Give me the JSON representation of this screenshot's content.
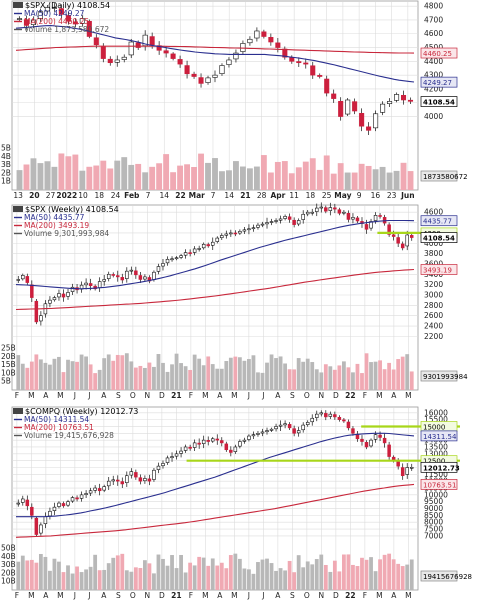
{
  "colors": {
    "up": "#ffffff",
    "down": "#cc1f3d",
    "wick": "#111111",
    "ma50": "#2a2f8f",
    "ma200": "#c8283c",
    "vol_up": "#b8b8b8",
    "vol_down": "#f0a9b3",
    "grid": "#dcdcdc",
    "trendline": "#a8d61a"
  },
  "chart_data": [
    {
      "type": "candlestick",
      "title": "$SPX (Daily) 4108.54",
      "legend": [
        "MA(50) 4249.27",
        "MA(200) 4460.25",
        "Volume 1,873,580,672"
      ],
      "legend_keys": [
        "ma50",
        "ma200",
        "volume"
      ],
      "x_ticks": [
        "13",
        "20",
        "27",
        "2022",
        "10",
        "18",
        "24",
        "Feb",
        "7",
        "14",
        "22",
        "Mar",
        "7",
        "14",
        "21",
        "28",
        "Apr",
        "11",
        "18",
        "25",
        "May",
        "9",
        "16",
        "23",
        "Jun"
      ],
      "y_ticks": [
        4000,
        4100,
        4200,
        4300,
        4400,
        4500,
        4600,
        4700,
        4800
      ],
      "ylim": [
        3830,
        4830
      ],
      "vol_ticks": [
        "1B",
        "2B",
        "3B",
        "4B",
        "5B"
      ],
      "price_tags": [
        "4460.25",
        "4249.27",
        "4108.54",
        "1873580672"
      ],
      "close_series": [
        4710,
        4660,
        4700,
        4760,
        4790,
        4790,
        4740,
        4690,
        4670,
        4710,
        4580,
        4520,
        4420,
        4390,
        4410,
        4430,
        4540,
        4500,
        4590,
        4520,
        4480,
        4460,
        4420,
        4380,
        4310,
        4290,
        4240,
        4280,
        4300,
        4370,
        4410,
        4460,
        4530,
        4560,
        4620,
        4580,
        4540,
        4500,
        4430,
        4400,
        4390,
        4380,
        4300,
        4290,
        4170,
        4130,
        4000,
        4120,
        4040,
        3930,
        3900,
        4020,
        4090,
        4110,
        4160,
        4120,
        4110
      ],
      "ma50_series": [
        4640,
        4650,
        4660,
        4650,
        4630,
        4600,
        4570,
        4550,
        4520,
        4500,
        4480,
        4465,
        4455,
        4450,
        4450,
        4450,
        4440,
        4425,
        4405,
        4380,
        4350,
        4320,
        4290,
        4265,
        4250
      ],
      "ma200_series": [
        4480,
        4490,
        4500,
        4505,
        4510,
        4510,
        4510,
        4510,
        4508,
        4505,
        4500,
        4497,
        4493,
        4488,
        4483,
        4478,
        4473,
        4468,
        4464,
        4461,
        4460
      ]
    },
    {
      "type": "candlestick",
      "title": "$SPX (Weekly) 4108.54",
      "legend": [
        "MA(50) 4435.77",
        "MA(200) 3493.19",
        "Volume 9,301,993,984"
      ],
      "legend_keys": [
        "ma50",
        "ma200",
        "volume"
      ],
      "x_ticks": [
        "F",
        "M",
        "A",
        "M",
        "J",
        "J",
        "A",
        "S",
        "O",
        "N",
        "D",
        "21",
        "F",
        "M",
        "A",
        "M",
        "J",
        "J",
        "A",
        "S",
        "O",
        "N",
        "D",
        "22",
        "F",
        "M",
        "A",
        "M"
      ],
      "y_ticks": [
        2200,
        2400,
        2600,
        2800,
        3000,
        3200,
        3400,
        3600,
        3800,
        4000,
        4200,
        4400,
        4600
      ],
      "ylim": [
        2130,
        4720
      ],
      "vol_ticks": [
        "5B",
        "10B",
        "15B",
        "20B",
        "25B"
      ],
      "price_tags": [
        "4435.77",
        "4200",
        "4108.54",
        "3493.19",
        "9301993984"
      ],
      "close_series": [
        3300,
        3380,
        3240,
        2950,
        2480,
        2600,
        2830,
        2900,
        2950,
        3030,
        2960,
        3050,
        3150,
        3100,
        3190,
        3230,
        3180,
        3120,
        3260,
        3300,
        3400,
        3380,
        3350,
        3290,
        3460,
        3480,
        3390,
        3300,
        3350,
        3270,
        3440,
        3550,
        3610,
        3690,
        3700,
        3720,
        3760,
        3820,
        3810,
        3890,
        3900,
        3980,
        3950,
        4020,
        4100,
        4150,
        4180,
        4200,
        4190,
        4230,
        4260,
        4280,
        4300,
        4350,
        4370,
        4400,
        4420,
        4440,
        4470,
        4520,
        4460,
        4360,
        4440,
        4560,
        4600,
        4600,
        4680,
        4700,
        4620,
        4690,
        4660,
        4580,
        4600,
        4460,
        4500,
        4430,
        4380,
        4270,
        4420,
        4540,
        4520,
        4390,
        4170,
        4130,
        4000,
        3910,
        4160,
        4110
      ],
      "ma50_series": [
        3200,
        3190,
        3170,
        3150,
        3130,
        3120,
        3130,
        3150,
        3180,
        3220,
        3260,
        3310,
        3370,
        3440,
        3510,
        3590,
        3680,
        3760,
        3840,
        3920,
        3990,
        4060,
        4120,
        4180,
        4240,
        4300,
        4350,
        4390,
        4420,
        4440,
        4440,
        4436
      ],
      "ma200_series": [
        2720,
        2730,
        2740,
        2760,
        2780,
        2800,
        2820,
        2840,
        2870,
        2900,
        2940,
        2980,
        3030,
        3080,
        3130,
        3190,
        3250,
        3300,
        3350,
        3400,
        3440,
        3470,
        3493
      ]
    },
    {
      "type": "candlestick",
      "title": "$COMPQ (Weekly) 12012.73",
      "legend": [
        "MA(50) 14311.54",
        "MA(200) 10763.51",
        "Volume 19,415,676,928"
      ],
      "legend_keys": [
        "ma50",
        "ma200",
        "volume"
      ],
      "x_ticks": [
        "F",
        "M",
        "A",
        "M",
        "J",
        "J",
        "A",
        "S",
        "O",
        "N",
        "D",
        "21",
        "F",
        "M",
        "A",
        "M",
        "J",
        "J",
        "A",
        "S",
        "O",
        "N",
        "D",
        "22",
        "F",
        "M",
        "A",
        "M"
      ],
      "y_ticks": [
        7000,
        7500,
        8000,
        8500,
        9000,
        9500,
        10000,
        10500,
        11000,
        11500,
        12000,
        12500,
        13000,
        13500,
        14000,
        14500,
        15000,
        15500,
        16000
      ],
      "ylim": [
        6700,
        16350
      ],
      "vol_ticks": [
        "10B",
        "20B",
        "30B",
        "40B",
        "50B"
      ],
      "price_tags": [
        "15000",
        "14311.54",
        "12500",
        "12012.73",
        "10763.51",
        "19415676928"
      ],
      "close_series": [
        9400,
        9700,
        9200,
        8500,
        7100,
        7800,
        8400,
        8800,
        9100,
        9400,
        9200,
        9500,
        9800,
        9700,
        10000,
        10100,
        10300,
        10500,
        10300,
        10600,
        11000,
        11100,
        11000,
        10800,
        11400,
        11700,
        11300,
        11000,
        11200,
        11000,
        11800,
        12100,
        12300,
        12700,
        12800,
        13000,
        13200,
        13500,
        13400,
        13800,
        13700,
        14000,
        13900,
        14100,
        14000,
        13800,
        13300,
        13100,
        13500,
        13900,
        14000,
        14300,
        14400,
        14500,
        14600,
        14700,
        14800,
        15000,
        15100,
        15200,
        14900,
        14500,
        14700,
        15100,
        15300,
        15600,
        15900,
        16000,
        15700,
        15900,
        15700,
        15500,
        15400,
        14900,
        14500,
        14100,
        13900,
        13500,
        14000,
        14400,
        14200,
        13800,
        12800,
        12500,
        12100,
        11400,
        12000,
        12013
      ],
      "ma50_series": [
        8400,
        8400,
        8400,
        8450,
        8550,
        8700,
        8900,
        9100,
        9350,
        9600,
        9850,
        10100,
        10400,
        10700,
        11000,
        11300,
        11650,
        12000,
        12350,
        12700,
        13000,
        13300,
        13600,
        13900,
        14150,
        14350,
        14450,
        14500,
        14500,
        14400,
        14312
      ],
      "ma200_series": [
        6900,
        6950,
        7000,
        7100,
        7200,
        7300,
        7400,
        7550,
        7700,
        7850,
        8000,
        8200,
        8400,
        8600,
        8800,
        9000,
        9250,
        9500,
        9750,
        10000,
        10250,
        10450,
        10650,
        10764
      ],
      "trendlines": [
        [
          15000,
          15000
        ],
        [
          12500,
          12500
        ]
      ]
    }
  ]
}
